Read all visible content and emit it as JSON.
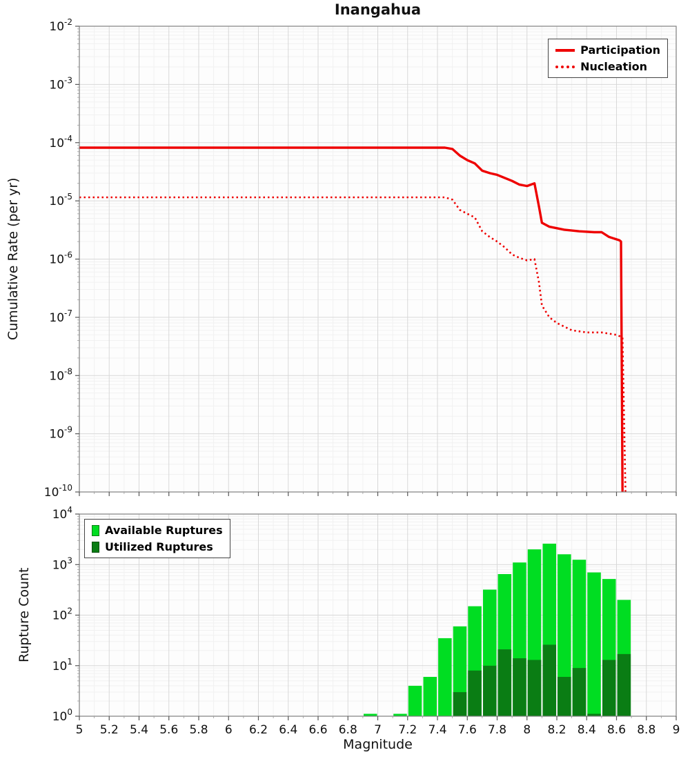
{
  "chart_data": [
    {
      "type": "line",
      "title": "Inangahua",
      "ylabel": "Cumulative Rate (per yr)",
      "xlabel": "",
      "xlim": [
        5,
        9
      ],
      "ylim": [
        1e-10,
        0.01
      ],
      "grid": true,
      "legend_position": "top-right",
      "yticks_exp": [
        -2,
        -3,
        -4,
        -5,
        -6,
        -7,
        -8,
        -9,
        -10
      ],
      "series": [
        {
          "name": "Participation",
          "color": "#ee0000",
          "style": "solid",
          "points": [
            [
              5.0,
              8.2e-05
            ],
            [
              7.45,
              8.2e-05
            ],
            [
              7.5,
              7.8e-05
            ],
            [
              7.55,
              6e-05
            ],
            [
              7.6,
              5e-05
            ],
            [
              7.65,
              4.4e-05
            ],
            [
              7.7,
              3.3e-05
            ],
            [
              7.75,
              3e-05
            ],
            [
              7.8,
              2.8e-05
            ],
            [
              7.9,
              2.2e-05
            ],
            [
              7.95,
              1.9e-05
            ],
            [
              8.0,
              1.8e-05
            ],
            [
              8.05,
              2e-05
            ],
            [
              8.08,
              8e-06
            ],
            [
              8.1,
              4.2e-06
            ],
            [
              8.15,
              3.6e-06
            ],
            [
              8.25,
              3.2e-06
            ],
            [
              8.35,
              3e-06
            ],
            [
              8.45,
              2.9e-06
            ],
            [
              8.5,
              2.9e-06
            ],
            [
              8.55,
              2.4e-06
            ],
            [
              8.62,
              2.1e-06
            ],
            [
              8.63,
              2e-06
            ],
            [
              8.64,
              1e-10
            ]
          ]
        },
        {
          "name": "Nucleation",
          "color": "#ee0000",
          "style": "dotted",
          "points": [
            [
              5.0,
              1.15e-05
            ],
            [
              7.45,
              1.15e-05
            ],
            [
              7.5,
              1.05e-05
            ],
            [
              7.55,
              7e-06
            ],
            [
              7.6,
              6e-06
            ],
            [
              7.65,
              5.2e-06
            ],
            [
              7.7,
              3e-06
            ],
            [
              7.75,
              2.4e-06
            ],
            [
              7.8,
              2e-06
            ],
            [
              7.85,
              1.6e-06
            ],
            [
              7.9,
              1.2e-06
            ],
            [
              7.95,
              1.05e-06
            ],
            [
              8.0,
              9.5e-07
            ],
            [
              8.05,
              1e-06
            ],
            [
              8.08,
              4e-07
            ],
            [
              8.1,
              1.6e-07
            ],
            [
              8.15,
              1e-07
            ],
            [
              8.2,
              8e-08
            ],
            [
              8.3,
              6e-08
            ],
            [
              8.4,
              5.5e-08
            ],
            [
              8.5,
              5.5e-08
            ],
            [
              8.6,
              5e-08
            ],
            [
              8.64,
              4.5e-08
            ],
            [
              8.66,
              1e-10
            ]
          ]
        }
      ]
    },
    {
      "type": "bar",
      "title": "",
      "ylabel": "Rupture Count",
      "xlabel": "Magnitude",
      "xlim": [
        5,
        9
      ],
      "ylim": [
        1,
        10000
      ],
      "grid": true,
      "legend_position": "top-left",
      "yticks_exp": [
        0,
        1,
        2,
        3,
        4
      ],
      "xticks": [
        5,
        5.2,
        5.4,
        5.6,
        5.8,
        6,
        6.2,
        6.4,
        6.6,
        6.8,
        7,
        7.2,
        7.4,
        7.6,
        7.8,
        8,
        8.2,
        8.4,
        8.6,
        8.8,
        9
      ],
      "xtick_labels": [
        "5",
        "5.2",
        "5.4",
        "5.6",
        "5.8",
        "6",
        "6.2",
        "6.4",
        "6.6",
        "6.8",
        "7",
        "7.2",
        "7.4",
        "7.6",
        "7.8",
        "8",
        "8.2",
        "8.4",
        "8.6",
        "8.8",
        "9"
      ],
      "bin_width": 0.1,
      "series": [
        {
          "name": "Available Ruptures",
          "color": "#00dd22",
          "bars": [
            [
              6.95,
              1
            ],
            [
              7.15,
              1
            ],
            [
              7.25,
              4
            ],
            [
              7.35,
              6
            ],
            [
              7.45,
              35
            ],
            [
              7.55,
              60
            ],
            [
              7.65,
              150
            ],
            [
              7.75,
              320
            ],
            [
              7.85,
              650
            ],
            [
              7.95,
              1100
            ],
            [
              8.05,
              2000
            ],
            [
              8.15,
              2600
            ],
            [
              8.25,
              1600
            ],
            [
              8.35,
              1250
            ],
            [
              8.45,
              700
            ],
            [
              8.55,
              520
            ],
            [
              8.65,
              200
            ]
          ]
        },
        {
          "name": "Utilized Ruptures",
          "color": "#0a7d14",
          "bars": [
            [
              7.55,
              3
            ],
            [
              7.65,
              8
            ],
            [
              7.75,
              10
            ],
            [
              7.85,
              21
            ],
            [
              7.95,
              14
            ],
            [
              8.05,
              13
            ],
            [
              8.15,
              26
            ],
            [
              8.25,
              6
            ],
            [
              8.35,
              9
            ],
            [
              8.45,
              1
            ],
            [
              8.55,
              13
            ],
            [
              8.65,
              17
            ]
          ]
        }
      ]
    }
  ]
}
